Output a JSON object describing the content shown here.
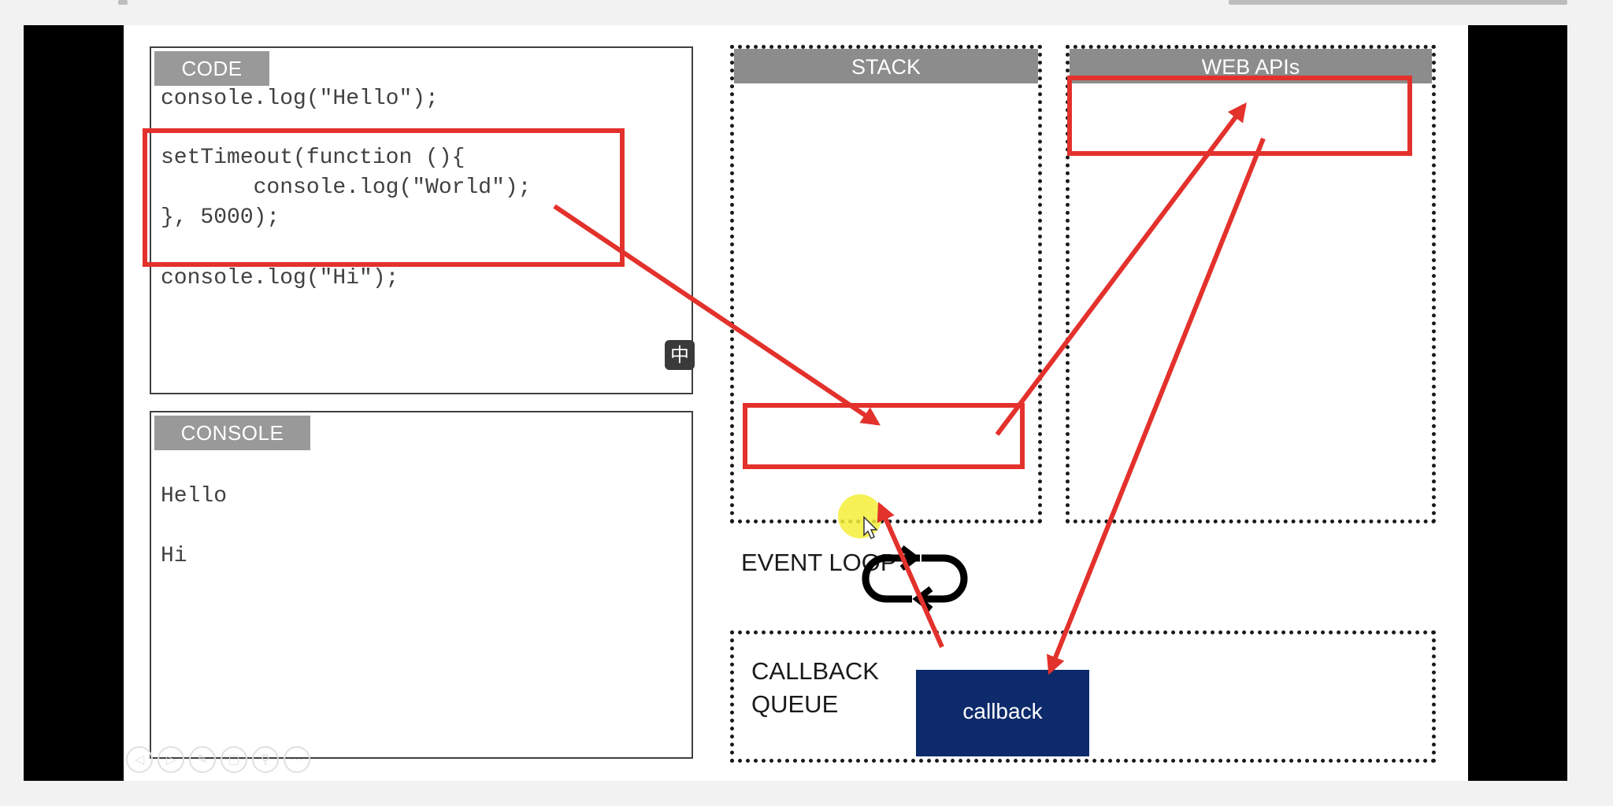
{
  "code_panel": {
    "tab": "CODE",
    "lines": [
      "console.log(\"Hello\");",
      "setTimeout(function (){",
      "       console.log(\"World\");",
      "}, 5000);",
      "console.log(\"Hi\");"
    ]
  },
  "console_panel": {
    "tab": "CONSOLE",
    "lines": [
      "Hello",
      "Hi"
    ]
  },
  "stack": {
    "title": "STACK"
  },
  "web_apis": {
    "title": "WEB APIs"
  },
  "event_loop": {
    "label": "EVENT LOOP"
  },
  "callback_queue": {
    "label_line1": "CALLBACK",
    "label_line2": "QUEUE",
    "item": "callback"
  },
  "ime_indicator": "中",
  "toolbar": {
    "icons": [
      "back-icon",
      "play-icon",
      "pen-icon",
      "copy-icon",
      "zoom-icon",
      "more-icon"
    ]
  },
  "colors": {
    "annotation_red": "#e3312c",
    "callback_blue": "#0d2a6b",
    "tab_gray": "#999999",
    "cursor_highlight": "#f3ef3a"
  }
}
